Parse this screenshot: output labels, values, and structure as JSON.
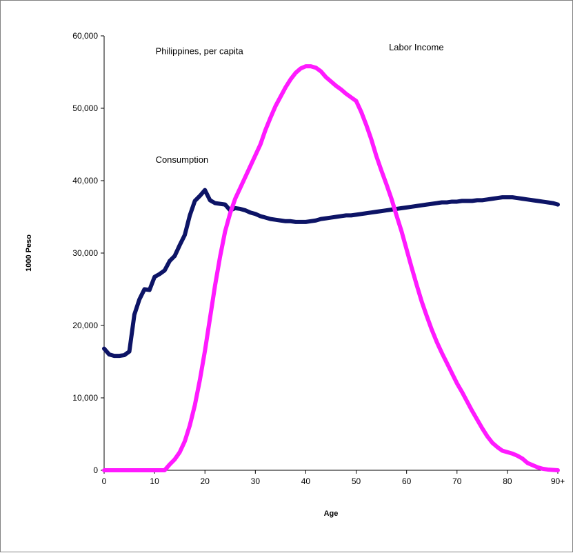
{
  "chart_data": {
    "type": "line",
    "title": "",
    "xlabel": "Age",
    "ylabel": "1000 Peso",
    "xlim": [
      0,
      90
    ],
    "ylim": [
      0,
      60000
    ],
    "grid": false,
    "legend": "none",
    "x_ticks": [
      {
        "value": 0,
        "label": "0"
      },
      {
        "value": 10,
        "label": "10"
      },
      {
        "value": 20,
        "label": "20"
      },
      {
        "value": 30,
        "label": "30"
      },
      {
        "value": 40,
        "label": "40"
      },
      {
        "value": 50,
        "label": "50"
      },
      {
        "value": 60,
        "label": "60"
      },
      {
        "value": 70,
        "label": "70"
      },
      {
        "value": 80,
        "label": "80"
      },
      {
        "value": 90,
        "label": "90+"
      }
    ],
    "y_ticks": [
      {
        "value": 0,
        "label": "0"
      },
      {
        "value": 10000,
        "label": "10,000"
      },
      {
        "value": 20000,
        "label": "20,000"
      },
      {
        "value": 30000,
        "label": "30,000"
      },
      {
        "value": 40000,
        "label": "40,000"
      },
      {
        "value": 50000,
        "label": "50,000"
      },
      {
        "value": 60000,
        "label": "60,000"
      }
    ],
    "annotations": [
      {
        "text": "Philippines, per capita",
        "x": 10.2,
        "y": 57500
      },
      {
        "text": "Labor Income",
        "x": 56.5,
        "y": 58000
      },
      {
        "text": "Consumption",
        "x": 10.2,
        "y": 42500
      }
    ],
    "series": [
      {
        "name": "Consumption",
        "color": "#0d1466",
        "x": [
          0,
          1,
          2,
          3,
          4,
          5,
          6,
          7,
          8,
          9,
          10,
          11,
          12,
          13,
          14,
          15,
          16,
          17,
          18,
          19,
          20,
          21,
          22,
          23,
          24,
          25,
          26,
          27,
          28,
          29,
          30,
          31,
          32,
          33,
          34,
          35,
          36,
          37,
          38,
          39,
          40,
          41,
          42,
          43,
          44,
          45,
          46,
          47,
          48,
          49,
          50,
          51,
          52,
          53,
          54,
          55,
          56,
          57,
          58,
          59,
          60,
          61,
          62,
          63,
          64,
          65,
          66,
          67,
          68,
          69,
          70,
          71,
          72,
          73,
          74,
          75,
          76,
          77,
          78,
          79,
          80,
          81,
          82,
          83,
          84,
          85,
          86,
          87,
          88,
          89,
          90
        ],
        "values": [
          16800,
          16000,
          15800,
          15800,
          15900,
          16400,
          21500,
          23600,
          25000,
          24900,
          26700,
          27100,
          27600,
          28900,
          29600,
          31100,
          32500,
          35200,
          37200,
          37900,
          38700,
          37300,
          36900,
          36800,
          36700,
          35900,
          36200,
          36100,
          35900,
          35600,
          35400,
          35100,
          34900,
          34700,
          34600,
          34500,
          34400,
          34400,
          34300,
          34300,
          34300,
          34400,
          34500,
          34700,
          34800,
          34900,
          35000,
          35100,
          35200,
          35200,
          35300,
          35400,
          35500,
          35600,
          35700,
          35800,
          35900,
          36000,
          36100,
          36200,
          36300,
          36400,
          36500,
          36600,
          36700,
          36800,
          36900,
          37000,
          37000,
          37100,
          37100,
          37200,
          37200,
          37200,
          37300,
          37300,
          37400,
          37500,
          37600,
          37700,
          37700,
          37700,
          37600,
          37500,
          37400,
          37300,
          37200,
          37100,
          37000,
          36900,
          36700
        ]
      },
      {
        "name": "Labor Income",
        "color": "#ff1aff",
        "x": [
          0,
          1,
          2,
          3,
          4,
          5,
          6,
          7,
          8,
          9,
          10,
          11,
          12,
          13,
          14,
          15,
          16,
          17,
          18,
          19,
          20,
          21,
          22,
          23,
          24,
          25,
          26,
          27,
          28,
          29,
          30,
          31,
          32,
          33,
          34,
          35,
          36,
          37,
          38,
          39,
          40,
          41,
          42,
          43,
          44,
          45,
          46,
          47,
          48,
          49,
          50,
          51,
          52,
          53,
          54,
          55,
          56,
          57,
          58,
          59,
          60,
          61,
          62,
          63,
          64,
          65,
          66,
          67,
          68,
          69,
          70,
          71,
          72,
          73,
          74,
          75,
          76,
          77,
          78,
          79,
          80,
          81,
          82,
          83,
          84,
          85,
          86,
          87,
          88,
          89,
          90
        ],
        "values": [
          0,
          0,
          0,
          0,
          0,
          0,
          0,
          0,
          0,
          0,
          0,
          0,
          0,
          800,
          1500,
          2500,
          4000,
          6200,
          9000,
          12500,
          16500,
          21000,
          25500,
          29500,
          33000,
          35500,
          37500,
          39000,
          40500,
          42000,
          43500,
          45000,
          47000,
          48700,
          50300,
          51600,
          52900,
          54000,
          54900,
          55500,
          55800,
          55800,
          55600,
          55100,
          54300,
          53700,
          53100,
          52600,
          52000,
          51500,
          51000,
          49500,
          47700,
          45700,
          43400,
          41400,
          39500,
          37500,
          35200,
          33000,
          30500,
          28000,
          25600,
          23300,
          21300,
          19400,
          17700,
          16200,
          14800,
          13400,
          12000,
          10800,
          9500,
          8200,
          7000,
          5800,
          4700,
          3800,
          3200,
          2700,
          2500,
          2300,
          2000,
          1600,
          1000,
          700,
          400,
          200,
          100,
          50,
          0
        ]
      }
    ]
  }
}
